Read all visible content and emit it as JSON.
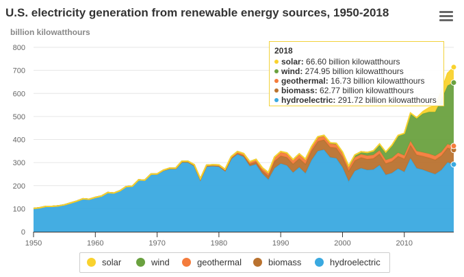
{
  "header": {
    "title": "U.S. electricity generation from renewable energy sources, 1950-2018",
    "subtitle": "billion kilowatthours"
  },
  "menu": {
    "icon": "hamburger-menu-icon"
  },
  "colors": {
    "solar": "#f9d22e",
    "wind": "#6aa13f",
    "geothermal": "#f47c3c",
    "biomass": "#b9722f",
    "hydroelectric": "#3aa9e0"
  },
  "tooltip": {
    "year": "2018",
    "rows": [
      {
        "name": "solar",
        "value": "66.60 billion kilowatthours",
        "color": "#f9d22e"
      },
      {
        "name": "wind",
        "value": "274.95 billion kilowatthours",
        "color": "#6aa13f"
      },
      {
        "name": "geothermal",
        "value": "16.73 billion kilowatthours",
        "color": "#f47c3c"
      },
      {
        "name": "biomass",
        "value": "62.77 billion kilowatthours",
        "color": "#b9722f"
      },
      {
        "name": "hydroelectric",
        "value": "291.72 billion kilowatthours",
        "color": "#3aa9e0"
      }
    ]
  },
  "chart_data": {
    "type": "area",
    "stacked": true,
    "title": "U.S. electricity generation from renewable energy sources, 1950-2018",
    "ylabel": "billion kilowatthours",
    "x": [
      1950,
      1951,
      1952,
      1953,
      1954,
      1955,
      1956,
      1957,
      1958,
      1959,
      1960,
      1961,
      1962,
      1963,
      1964,
      1965,
      1966,
      1967,
      1968,
      1969,
      1970,
      1971,
      1972,
      1973,
      1974,
      1975,
      1976,
      1977,
      1978,
      1979,
      1980,
      1981,
      1982,
      1983,
      1984,
      1985,
      1986,
      1987,
      1988,
      1989,
      1990,
      1991,
      1992,
      1993,
      1994,
      1995,
      1996,
      1997,
      1998,
      1999,
      2000,
      2001,
      2002,
      2003,
      2004,
      2005,
      2006,
      2007,
      2008,
      2009,
      2010,
      2011,
      2012,
      2013,
      2014,
      2015,
      2016,
      2017,
      2018
    ],
    "xlim": [
      1950,
      2018
    ],
    "ylim": [
      0,
      800
    ],
    "xticks": [
      1950,
      1960,
      1970,
      1980,
      1990,
      2000,
      2010
    ],
    "yticks": [
      0,
      100,
      200,
      300,
      400,
      500,
      600,
      700,
      800
    ],
    "grid": true,
    "legend_position": "bottom",
    "series": [
      {
        "name": "hydroelectric",
        "color": "#3aa9e0",
        "values": [
          101,
          104,
          110,
          110,
          112,
          117,
          125,
          133,
          143,
          141,
          149,
          155,
          170,
          168,
          178,
          196,
          198,
          225,
          224,
          250,
          250,
          266,
          274,
          274,
          303,
          303,
          287,
          226,
          285,
          287,
          285,
          265,
          316,
          336,
          325,
          285,
          293,
          253,
          227,
          276,
          296,
          288,
          257,
          280,
          254,
          311,
          350,
          356,
          323,
          319,
          280,
          219,
          264,
          276,
          268,
          270,
          289,
          247,
          255,
          274,
          260,
          319,
          276,
          269,
          259,
          250,
          268,
          301,
          292
        ]
      },
      {
        "name": "biomass",
        "color": "#b9722f",
        "values": [
          0,
          0,
          0,
          0,
          0,
          0,
          0,
          0,
          0,
          0,
          0,
          0,
          0,
          0,
          0,
          0,
          0,
          0,
          0,
          0,
          0,
          0,
          0,
          0,
          0,
          0,
          0,
          0,
          0,
          0,
          0,
          0,
          3,
          4,
          5,
          9,
          10,
          13,
          15,
          30,
          33,
          35,
          37,
          38,
          40,
          41,
          42,
          43,
          44,
          45,
          45,
          45,
          45,
          46,
          47,
          48,
          49,
          49,
          50,
          54,
          56,
          57,
          58,
          59,
          62,
          62,
          62,
          63,
          63
        ]
      },
      {
        "name": "geothermal",
        "color": "#f47c3c",
        "values": [
          0,
          0,
          0,
          0,
          0,
          0,
          0,
          0,
          0,
          0,
          0,
          0,
          0,
          0,
          0,
          0,
          0,
          0,
          0,
          0,
          1,
          1,
          2,
          2,
          3,
          3,
          4,
          4,
          4,
          4,
          5,
          6,
          7,
          8,
          9,
          10,
          11,
          12,
          12,
          15,
          16,
          16,
          16,
          17,
          17,
          14,
          16,
          15,
          15,
          15,
          15,
          14,
          14,
          14,
          15,
          15,
          15,
          15,
          15,
          15,
          15,
          17,
          16,
          16,
          17,
          17,
          16,
          16,
          17
        ]
      },
      {
        "name": "wind",
        "color": "#6aa13f",
        "values": [
          0,
          0,
          0,
          0,
          0,
          0,
          0,
          0,
          0,
          0,
          0,
          0,
          0,
          0,
          0,
          0,
          0,
          0,
          0,
          0,
          0,
          0,
          0,
          0,
          0,
          0,
          0,
          0,
          0,
          0,
          0,
          0,
          0,
          0,
          0,
          0,
          0,
          0,
          3,
          3,
          3,
          3,
          3,
          3,
          4,
          4,
          4,
          4,
          4,
          5,
          6,
          7,
          10,
          11,
          14,
          18,
          27,
          34,
          55,
          74,
          95,
          120,
          141,
          168,
          182,
          191,
          227,
          254,
          275
        ]
      },
      {
        "name": "solar",
        "color": "#f9d22e",
        "values": [
          0,
          0,
          0,
          0,
          0,
          0,
          0,
          0,
          0,
          0,
          0,
          0,
          0,
          0,
          0,
          0,
          0,
          0,
          0,
          0,
          0,
          0,
          0,
          0,
          0,
          0,
          0,
          0,
          0,
          0,
          0,
          0,
          0,
          0,
          0,
          0,
          0,
          0,
          0,
          0,
          0,
          0,
          0,
          0,
          0,
          0,
          0,
          0,
          0,
          0,
          0,
          0,
          0,
          0,
          0,
          0,
          1,
          1,
          1,
          1,
          1,
          2,
          4,
          9,
          18,
          25,
          36,
          53,
          67
        ]
      }
    ]
  },
  "legend": {
    "items": [
      {
        "label": "solar",
        "color": "#f9d22e"
      },
      {
        "label": "wind",
        "color": "#6aa13f"
      },
      {
        "label": "geothermal",
        "color": "#f47c3c"
      },
      {
        "label": "biomass",
        "color": "#b9722f"
      },
      {
        "label": "hydroelectric",
        "color": "#3aa9e0"
      }
    ]
  }
}
